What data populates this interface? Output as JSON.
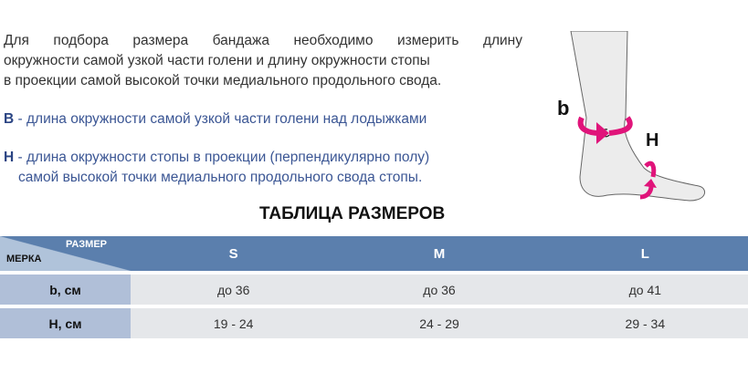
{
  "intro": [
    "Для подбора размера бандажа необходимо измерить длину",
    "окружности самой узкой части голени и длину окружности стопы",
    "в проекции самой высокой точки медиального продольного свода."
  ],
  "definitions": [
    {
      "letter": "B",
      "text": " - длина окружности самой узкой части голени над лодыжками"
    },
    {
      "letter": "H",
      "text": " - длина окружности стопы в проекции (перпендикулярно полу)",
      "text2": "самой высокой точки медиального продольного свода стопы."
    }
  ],
  "figure": {
    "label_b": "b",
    "label_h": "H",
    "arrow_color": "#e0147a"
  },
  "table": {
    "title": "ТАБЛИЦА РАЗМЕРОВ",
    "corner_top": "РАЗМЕР",
    "corner_bottom": "МЕРКА",
    "sizes": [
      "S",
      "M",
      "L"
    ],
    "rows": [
      {
        "label": "b, см",
        "values": [
          "до 36",
          "до 36",
          "до 41"
        ]
      },
      {
        "label": "H, см",
        "values": [
          "19 - 24",
          "24 - 29",
          "29 - 34"
        ]
      }
    ]
  }
}
